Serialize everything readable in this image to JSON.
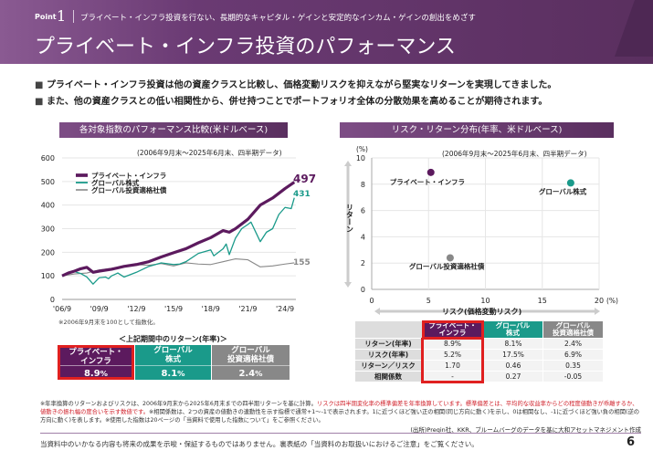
{
  "header": {
    "point_label": "Point",
    "point_number": "1",
    "subtitle": "プライベート・インフラ投資を行ない、長期的なキャピタル・ゲインと安定的なインカム・ゲインの創出をめざす",
    "title": "プライベート・インフラ投資のパフォーマンス"
  },
  "bullets": [
    "プライベート・インフラ投資は他の資産クラスと比較し、価格変動リスクを抑えながら堅実なリターンを実現してきました。",
    "また、他の資産クラスとの低い相関性から、併せ持つことでポートフォリオ全体の分散効果を高めることが期待されます。"
  ],
  "colors": {
    "private_infra": "#5c1a5e",
    "global_equity": "#1a9a8a",
    "global_bond": "#888888",
    "highlight": "#e02020",
    "header": "#5a2f5f"
  },
  "chart_data": [
    {
      "type": "line",
      "title": "各対象指数のパフォーマンス比較(米ドルベース)",
      "period": "(2006年9月末～2025年6月末、四半期データ)",
      "ylim": [
        0,
        600
      ],
      "yticks": [
        0,
        100,
        200,
        300,
        400,
        500,
        600
      ],
      "xticks": [
        "'06/9",
        "'09/9",
        "'12/9",
        "'15/9",
        "'18/9",
        "'21/9",
        "'24/9"
      ],
      "note": "※2006年9月末を100として指数化。",
      "legend_position": "top-left",
      "series": [
        {
          "name": "プライベート・インフラ",
          "end_label": "497",
          "points": [
            [
              "2006-09",
              100
            ],
            [
              "2007-03",
              112
            ],
            [
              "2007-09",
              120
            ],
            [
              "2008-03",
              130
            ],
            [
              "2008-09",
              136
            ],
            [
              "2009-03",
              115
            ],
            [
              "2009-09",
              120
            ],
            [
              "2010-09",
              128
            ],
            [
              "2011-09",
              140
            ],
            [
              "2012-09",
              148
            ],
            [
              "2013-09",
              160
            ],
            [
              "2014-09",
              180
            ],
            [
              "2015-09",
              198
            ],
            [
              "2016-09",
              215
            ],
            [
              "2017-09",
              240
            ],
            [
              "2018-09",
              262
            ],
            [
              "2019-09",
              292
            ],
            [
              "2020-03",
              285
            ],
            [
              "2020-09",
              300
            ],
            [
              "2021-09",
              340
            ],
            [
              "2022-09",
              400
            ],
            [
              "2023-09",
              430
            ],
            [
              "2024-09",
              470
            ],
            [
              "2025-06",
              497
            ]
          ]
        },
        {
          "name": "グローバル株式",
          "end_label": "431",
          "points": [
            [
              "2006-09",
              100
            ],
            [
              "2007-09",
              118
            ],
            [
              "2008-03",
              110
            ],
            [
              "2008-09",
              95
            ],
            [
              "2009-03",
              65
            ],
            [
              "2009-09",
              92
            ],
            [
              "2010-03",
              95
            ],
            [
              "2010-06",
              88
            ],
            [
              "2010-09",
              100
            ],
            [
              "2011-03",
              112
            ],
            [
              "2011-09",
              95
            ],
            [
              "2012-09",
              115
            ],
            [
              "2013-09",
              140
            ],
            [
              "2014-09",
              155
            ],
            [
              "2015-09",
              148
            ],
            [
              "2016-03",
              150
            ],
            [
              "2016-09",
              160
            ],
            [
              "2017-09",
              195
            ],
            [
              "2018-09",
              210
            ],
            [
              "2018-12",
              185
            ],
            [
              "2019-09",
              215
            ],
            [
              "2019-12",
              235
            ],
            [
              "2020-03",
              190
            ],
            [
              "2020-09",
              260
            ],
            [
              "2021-03",
              300
            ],
            [
              "2021-09",
              318
            ],
            [
              "2021-12",
              328
            ],
            [
              "2022-09",
              245
            ],
            [
              "2023-03",
              285
            ],
            [
              "2023-09",
              300
            ],
            [
              "2024-03",
              360
            ],
            [
              "2024-09",
              390
            ],
            [
              "2025-03",
              385
            ],
            [
              "2025-06",
              431
            ]
          ]
        },
        {
          "name": "グローバル投資適格社債",
          "end_label": "155",
          "points": [
            [
              "2006-09",
              100
            ],
            [
              "2007-09",
              108
            ],
            [
              "2008-09",
              112
            ],
            [
              "2009-09",
              125
            ],
            [
              "2010-09",
              132
            ],
            [
              "2011-09",
              140
            ],
            [
              "2012-09",
              148
            ],
            [
              "2013-09",
              145
            ],
            [
              "2014-09",
              152
            ],
            [
              "2015-09",
              142
            ],
            [
              "2016-09",
              155
            ],
            [
              "2017-09",
              150
            ],
            [
              "2018-09",
              148
            ],
            [
              "2019-09",
              160
            ],
            [
              "2020-09",
              172
            ],
            [
              "2021-09",
              168
            ],
            [
              "2022-09",
              138
            ],
            [
              "2023-09",
              142
            ],
            [
              "2024-09",
              150
            ],
            [
              "2025-06",
              155
            ]
          ]
        }
      ]
    },
    {
      "type": "scatter",
      "title": "リスク・リターン分布(年率、米ドルベース)",
      "period": "(2006年9月末～2025年6月末、四半期データ)",
      "xlabel": "リスク(価格変動リスク)",
      "ylabel": "リターン",
      "x_unit": "(%)",
      "y_unit": "(%)",
      "xlim": [
        0,
        20
      ],
      "ylim": [
        0,
        10
      ],
      "xticks": [
        0,
        5,
        10,
        15,
        20
      ],
      "yticks": [
        0,
        2,
        4,
        6,
        8,
        10
      ],
      "grid": true,
      "points": [
        {
          "name": "プライベート・インフラ",
          "x": 5.2,
          "y": 8.9
        },
        {
          "name": "グローバル株式",
          "x": 17.5,
          "y": 8.1
        },
        {
          "name": "グローバル投資適格社債",
          "x": 6.9,
          "y": 2.4
        }
      ]
    }
  ],
  "returns_box": {
    "title": "＜上記期間中のリターン(年率)＞",
    "items": [
      {
        "label1": "プライベート・",
        "label2": "インフラ",
        "value": "8.9",
        "unit": "%"
      },
      {
        "label1": "グローバル",
        "label2": "株式",
        "value": "8.1",
        "unit": "%"
      },
      {
        "label1": "グローバル",
        "label2": "投資適格社債",
        "value": "2.4",
        "unit": "%"
      }
    ]
  },
  "table": {
    "headers": [
      [
        "プライベート・",
        "インフラ"
      ],
      [
        "グローバル",
        "株式"
      ],
      [
        "グローバル",
        "投資適格社債"
      ]
    ],
    "rows": [
      {
        "label": "リターン(年率)",
        "values": [
          "8.9%",
          "8.1%",
          "2.4%"
        ]
      },
      {
        "label": "リスク(年率)",
        "values": [
          "5.2%",
          "17.5%",
          "6.9%"
        ]
      },
      {
        "label": "リターン／リスク",
        "values": [
          "1.70",
          "0.46",
          "0.35"
        ]
      },
      {
        "label": "相関係数",
        "values": [
          "-",
          "0.27",
          "-0.05"
        ]
      }
    ]
  },
  "footnote": {
    "p1": "※年率換算のリターンおよびリスクは、2006年9月末から2025年6月末までの四半期リターンを基に計算。",
    "p2_red": "リスクは四半期変化率の標準偏差を年率換算しています。標準偏差とは、平均的な収益率からどの程度値動きが乖離するか、値動きの振れ幅の度合いを示す数値です。",
    "p3": "※相関係数は、2つの資産の値動きの連動性を示す指標で通常+1～-1で表示されます。1に近づくほど強い正の相関(同じ方向に動く)を示し、0は相関なし、-1に近づくほど強い負の相関(逆の方向に動く)を表します。※使用した指数は20ページの「当資料で使用した指数について」をご参照ください。",
    "source": "(出所)Preqin社、KKR、ブルームバーグのデータを基に大和アセットマネジメント作成"
  },
  "footer": {
    "disclaimer": "当資料中のいかなる内容も将来の成果を示唆・保証するものではありません。裏表紙の「当資料のお取扱いにおけるご注意」をご覧ください。",
    "page": "6"
  }
}
